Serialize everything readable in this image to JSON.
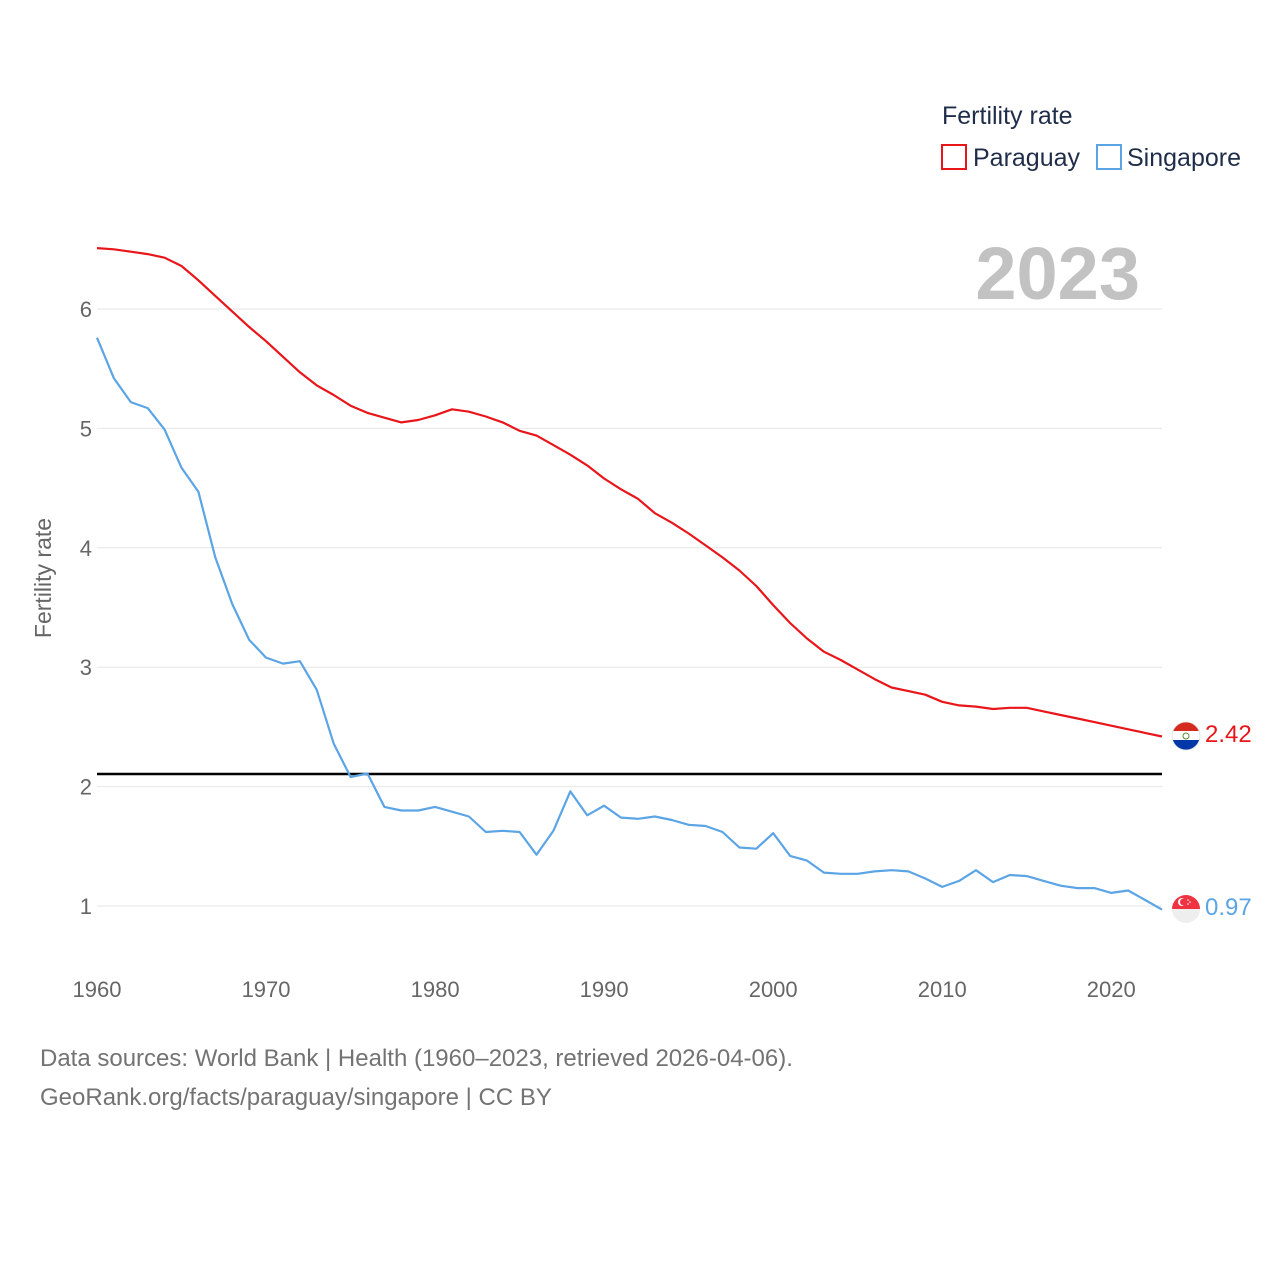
{
  "chart_data": {
    "type": "line",
    "legend_title": "Fertility rate",
    "year_label": "2023",
    "ylabel": "Fertility rate",
    "xlabel": "",
    "xlim": [
      1960,
      2023
    ],
    "ylim": [
      0.5,
      6.6
    ],
    "x_ticks": [
      1960,
      1970,
      1980,
      1990,
      2000,
      2010,
      2020
    ],
    "y_ticks": [
      1,
      2,
      3,
      4,
      5,
      6
    ],
    "reference_line": 2.1,
    "x": [
      1960,
      1961,
      1962,
      1963,
      1964,
      1965,
      1966,
      1967,
      1968,
      1969,
      1970,
      1971,
      1972,
      1973,
      1974,
      1975,
      1976,
      1977,
      1978,
      1979,
      1980,
      1981,
      1982,
      1983,
      1984,
      1985,
      1986,
      1987,
      1988,
      1989,
      1990,
      1991,
      1992,
      1993,
      1994,
      1995,
      1996,
      1997,
      1998,
      1999,
      2000,
      2001,
      2002,
      2003,
      2004,
      2005,
      2006,
      2007,
      2008,
      2009,
      2010,
      2011,
      2012,
      2013,
      2014,
      2015,
      2016,
      2017,
      2018,
      2019,
      2020,
      2021,
      2022,
      2023
    ],
    "series": [
      {
        "name": "Paraguay",
        "color": "#e8161a",
        "end_label": "2.42",
        "values": [
          6.51,
          6.5,
          6.48,
          6.46,
          6.43,
          6.36,
          6.24,
          6.11,
          5.98,
          5.85,
          5.73,
          5.6,
          5.47,
          5.36,
          5.28,
          5.19,
          5.13,
          5.09,
          5.05,
          5.07,
          5.11,
          5.16,
          5.14,
          5.1,
          5.05,
          4.98,
          4.94,
          4.86,
          4.78,
          4.69,
          4.58,
          4.49,
          4.41,
          4.29,
          4.21,
          4.12,
          4.02,
          3.92,
          3.81,
          3.68,
          3.52,
          3.37,
          3.24,
          3.13,
          3.06,
          2.98,
          2.9,
          2.83,
          2.8,
          2.77,
          2.71,
          2.68,
          2.67,
          2.65,
          2.66,
          2.66,
          2.63,
          2.6,
          2.57,
          2.54,
          2.51,
          2.48,
          2.45,
          2.42
        ]
      },
      {
        "name": "Singapore",
        "color": "#5ba4e5",
        "end_label": "0.97",
        "values": [
          5.76,
          5.42,
          5.22,
          5.17,
          4.99,
          4.67,
          4.47,
          3.92,
          3.53,
          3.23,
          3.08,
          3.03,
          3.05,
          2.81,
          2.36,
          2.08,
          2.11,
          1.83,
          1.8,
          1.8,
          1.83,
          1.79,
          1.75,
          1.62,
          1.63,
          1.62,
          1.43,
          1.63,
          1.96,
          1.76,
          1.84,
          1.74,
          1.73,
          1.75,
          1.72,
          1.68,
          1.67,
          1.62,
          1.49,
          1.48,
          1.61,
          1.42,
          1.38,
          1.28,
          1.27,
          1.27,
          1.29,
          1.3,
          1.29,
          1.23,
          1.16,
          1.21,
          1.3,
          1.2,
          1.26,
          1.25,
          1.21,
          1.17,
          1.15,
          1.15,
          1.11,
          1.13,
          1.05,
          0.97
        ]
      }
    ]
  },
  "source": {
    "line1": "Data sources: World Bank | Health (1960–2023, retrieved 2026-04-06).",
    "line2": "GeoRank.org/facts/paraguay/singapore | CC BY"
  },
  "flags": [
    "paraguay-flag-icon",
    "singapore-flag-icon"
  ]
}
